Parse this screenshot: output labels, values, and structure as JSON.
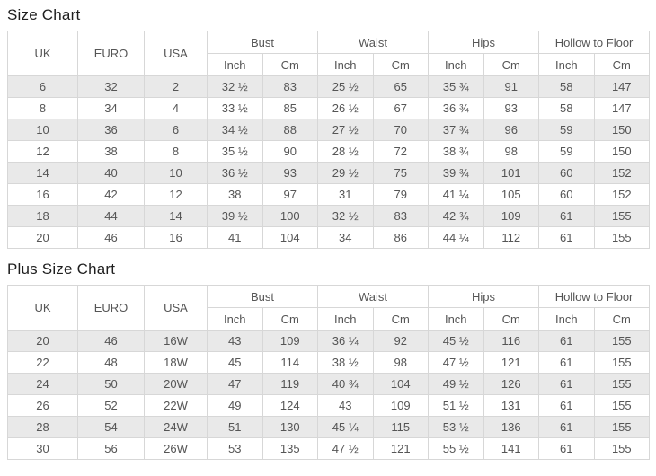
{
  "colors": {
    "row_shaded": "#e9e9e9",
    "border": "#d7d7d7",
    "text": "#555555",
    "title": "#1f1f1f",
    "background": "#ffffff"
  },
  "tables": [
    {
      "title": "Size Chart",
      "group_headers": [
        "UK",
        "EURO",
        "USA",
        "Bust",
        "Waist",
        "Hips",
        "Hollow to Floor"
      ],
      "sub_headers": [
        "Inch",
        "Cm",
        "Inch",
        "Cm",
        "Inch",
        "Cm",
        "Inch",
        "Cm"
      ],
      "rows": [
        [
          "6",
          "32",
          "2",
          "32 ½",
          "83",
          "25 ½",
          "65",
          "35 ¾",
          "91",
          "58",
          "147"
        ],
        [
          "8",
          "34",
          "4",
          "33 ½",
          "85",
          "26 ½",
          "67",
          "36 ¾",
          "93",
          "58",
          "147"
        ],
        [
          "10",
          "36",
          "6",
          "34 ½",
          "88",
          "27 ½",
          "70",
          "37 ¾",
          "96",
          "59",
          "150"
        ],
        [
          "12",
          "38",
          "8",
          "35 ½",
          "90",
          "28 ½",
          "72",
          "38 ¾",
          "98",
          "59",
          "150"
        ],
        [
          "14",
          "40",
          "10",
          "36 ½",
          "93",
          "29 ½",
          "75",
          "39 ¾",
          "101",
          "60",
          "152"
        ],
        [
          "16",
          "42",
          "12",
          "38",
          "97",
          "31",
          "79",
          "41 ¼",
          "105",
          "60",
          "152"
        ],
        [
          "18",
          "44",
          "14",
          "39 ½",
          "100",
          "32 ½",
          "83",
          "42 ¾",
          "109",
          "61",
          "155"
        ],
        [
          "20",
          "46",
          "16",
          "41",
          "104",
          "34",
          "86",
          "44 ¼",
          "112",
          "61",
          "155"
        ]
      ]
    },
    {
      "title": "Plus Size Chart",
      "group_headers": [
        "UK",
        "EURO",
        "USA",
        "Bust",
        "Waist",
        "Hips",
        "Hollow to Floor"
      ],
      "sub_headers": [
        "Inch",
        "Cm",
        "Inch",
        "Cm",
        "Inch",
        "Cm",
        "Inch",
        "Cm"
      ],
      "rows": [
        [
          "20",
          "46",
          "16W",
          "43",
          "109",
          "36 ¼",
          "92",
          "45 ½",
          "116",
          "61",
          "155"
        ],
        [
          "22",
          "48",
          "18W",
          "45",
          "114",
          "38 ½",
          "98",
          "47 ½",
          "121",
          "61",
          "155"
        ],
        [
          "24",
          "50",
          "20W",
          "47",
          "119",
          "40 ¾",
          "104",
          "49 ½",
          "126",
          "61",
          "155"
        ],
        [
          "26",
          "52",
          "22W",
          "49",
          "124",
          "43",
          "109",
          "51 ½",
          "131",
          "61",
          "155"
        ],
        [
          "28",
          "54",
          "24W",
          "51",
          "130",
          "45 ¼",
          "115",
          "53 ½",
          "136",
          "61",
          "155"
        ],
        [
          "30",
          "56",
          "26W",
          "53",
          "135",
          "47 ½",
          "121",
          "55 ½",
          "141",
          "61",
          "155"
        ]
      ]
    }
  ]
}
